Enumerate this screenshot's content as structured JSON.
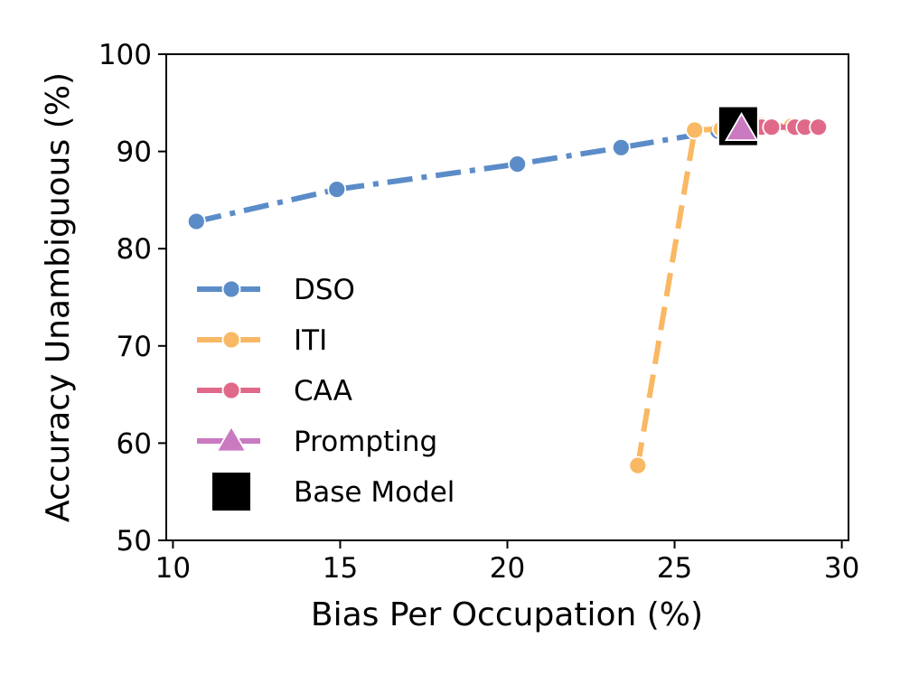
{
  "chart_data": {
    "type": "line",
    "xlabel": "Bias Per Occupation (%)",
    "ylabel": "Accuracy Unambiguous (%)",
    "xlim": [
      9.8,
      30.2
    ],
    "ylim": [
      50,
      100
    ],
    "xticks": [
      10,
      15,
      20,
      25,
      30
    ],
    "yticks": [
      50,
      60,
      70,
      80,
      90,
      100
    ],
    "legend_position": "left-center",
    "series": [
      {
        "name": "DSO",
        "color": "#5b8cc8",
        "marker": "circle",
        "line": "dash-dot",
        "x": [
          10.7,
          14.9,
          20.3,
          23.4,
          26.3
        ],
        "y": [
          82.8,
          86.1,
          88.7,
          90.4,
          92.1
        ]
      },
      {
        "name": "ITI",
        "color": "#f9b863",
        "marker": "circle",
        "line": "dashed",
        "x": [
          23.9,
          25.6,
          26.4,
          27.0,
          27.6,
          28.5,
          28.7
        ],
        "y": [
          57.7,
          92.2,
          92.3,
          92.6,
          92.7,
          92.6,
          92.5
        ]
      },
      {
        "name": "CAA",
        "color": "#e0698a",
        "marker": "circle",
        "line": "dashed",
        "x": [
          26.9,
          27.3,
          27.6,
          27.9,
          28.6,
          28.9,
          29.3
        ],
        "y": [
          92.4,
          92.5,
          92.5,
          92.5,
          92.5,
          92.5,
          92.5
        ]
      },
      {
        "name": "Prompting",
        "color": "#c97ac0",
        "marker": "triangle",
        "line": "dashed",
        "x": [
          27.0
        ],
        "y": [
          92.3
        ]
      },
      {
        "name": "Base Model",
        "color": "#000000",
        "marker": "square",
        "line": "none",
        "x": [
          26.9
        ],
        "y": [
          92.6
        ]
      }
    ]
  }
}
